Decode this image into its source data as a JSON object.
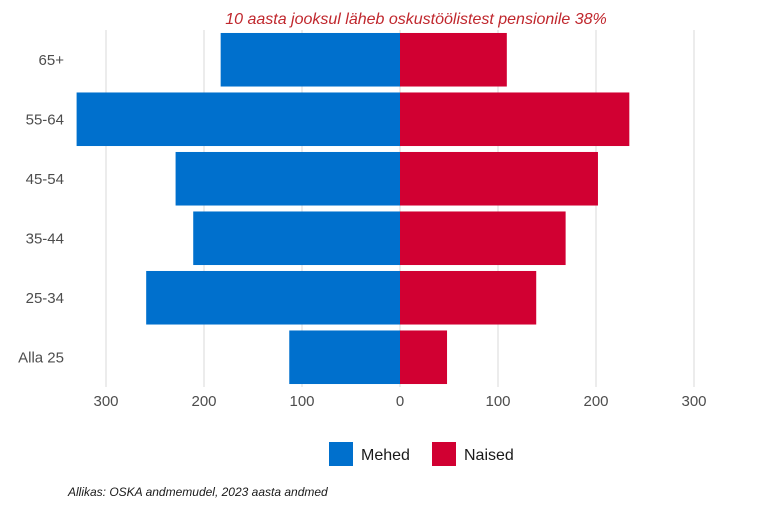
{
  "chart_data": {
    "type": "bar",
    "orientation": "horizontal",
    "layout": "diverging",
    "title": "10 aasta jooksul läheb oskustöölistest pensionile 38%",
    "caption": "Allikas: OSKA andmemudel, 2023 aasta andmed",
    "categories": [
      "65+",
      "55-64",
      "45-54",
      "35-44",
      "25-34",
      "Alla 25"
    ],
    "series": [
      {
        "name": "Mehed",
        "side": "left",
        "color": "#0070cd",
        "values": [
          183,
          330,
          229,
          211,
          259,
          113
        ]
      },
      {
        "name": "Naised",
        "side": "right",
        "color": "#d10032",
        "values": [
          109,
          234,
          202,
          169,
          139,
          48
        ]
      }
    ],
    "xlim": [
      -340,
      340
    ],
    "x_ticks": [
      -300,
      -200,
      -100,
      0,
      100,
      200,
      300
    ],
    "x_tick_labels": [
      "300",
      "200",
      "100",
      "0",
      "100",
      "200",
      "300"
    ],
    "grid": true,
    "legend_position": "bottom",
    "title_color": "#c0272d"
  }
}
